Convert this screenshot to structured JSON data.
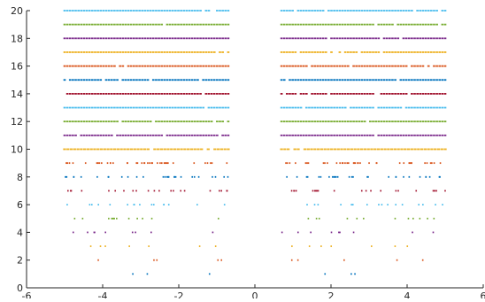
{
  "chart_data": {
    "type": "scatter",
    "title": "",
    "xlabel": "",
    "ylabel": "",
    "xlim": [
      -6,
      6
    ],
    "ylim": [
      0,
      20
    ],
    "grid": false,
    "legend": "none",
    "x_ticks": [
      "-6",
      "-4",
      "-2",
      "0",
      "2",
      "4",
      "6"
    ],
    "x_tick_values": [
      -6,
      -4,
      -2,
      0,
      2,
      4,
      6
    ],
    "y_ticks": [
      "0",
      "2",
      "4",
      "6",
      "8",
      "10",
      "12",
      "14",
      "16",
      "18",
      "20"
    ],
    "y_tick_values": [
      0,
      2,
      4,
      6,
      8,
      10,
      12,
      14,
      16,
      18,
      20
    ],
    "palette": [
      "#0072BD",
      "#D95319",
      "#EDB120",
      "#7E2F8E",
      "#77AC30",
      "#4DBEEE",
      "#A2142F"
    ],
    "series": [
      {
        "n": 1,
        "x_range": [
          -5,
          5
        ],
        "color": "#0072BD",
        "points_per_side": 3
      },
      {
        "n": 2,
        "x_range": [
          -5,
          5
        ],
        "color": "#D95319",
        "points_per_side": 5
      },
      {
        "n": 3,
        "x_range": [
          -5,
          5
        ],
        "color": "#EDB120",
        "points_per_side": 7
      },
      {
        "n": 4,
        "x_range": [
          -5,
          5
        ],
        "color": "#7E2F8E",
        "points_per_side": 9
      },
      {
        "n": 5,
        "x_range": [
          -5,
          5
        ],
        "color": "#77AC30",
        "points_per_side": 12
      },
      {
        "n": 6,
        "x_range": [
          -5,
          5
        ],
        "color": "#4DBEEE",
        "points_per_side": 16
      },
      {
        "n": 7,
        "x_range": [
          -5,
          5
        ],
        "color": "#A2142F",
        "points_per_side": 21
      },
      {
        "n": 8,
        "x_range": [
          -5,
          5
        ],
        "color": "#0072BD",
        "points_per_side": 28
      },
      {
        "n": 9,
        "x_range": [
          -5,
          5
        ],
        "color": "#D95319",
        "points_per_side": 38
      },
      {
        "n": 10,
        "x_range": [
          -5,
          5
        ],
        "color": "#EDB120",
        "points_per_side": 50
      },
      {
        "n": 11,
        "x_range": [
          -5,
          5
        ],
        "color": "#7E2F8E",
        "points_per_side": 60
      },
      {
        "n": 12,
        "x_range": [
          -5,
          5
        ],
        "color": "#77AC30",
        "points_per_side": 60
      },
      {
        "n": 13,
        "x_range": [
          -5,
          5
        ],
        "color": "#4DBEEE",
        "points_per_side": 60
      },
      {
        "n": 14,
        "x_range": [
          -5,
          5
        ],
        "color": "#A2142F",
        "points_per_side": 60
      },
      {
        "n": 15,
        "x_range": [
          -5,
          5
        ],
        "color": "#0072BD",
        "points_per_side": 60
      },
      {
        "n": 16,
        "x_range": [
          -5,
          5
        ],
        "color": "#D95319",
        "points_per_side": 60
      },
      {
        "n": 17,
        "x_range": [
          -5,
          5
        ],
        "color": "#EDB120",
        "points_per_side": 60
      },
      {
        "n": 18,
        "x_range": [
          -5,
          5
        ],
        "color": "#7E2F8E",
        "points_per_side": 60
      },
      {
        "n": 19,
        "x_range": [
          -5,
          5
        ],
        "color": "#77AC30",
        "points_per_side": 60
      },
      {
        "n": 20,
        "x_range": [
          -5,
          5
        ],
        "color": "#4DBEEE",
        "points_per_side": 60
      }
    ],
    "gap_x_range": [
      -0.7,
      0.7
    ]
  }
}
